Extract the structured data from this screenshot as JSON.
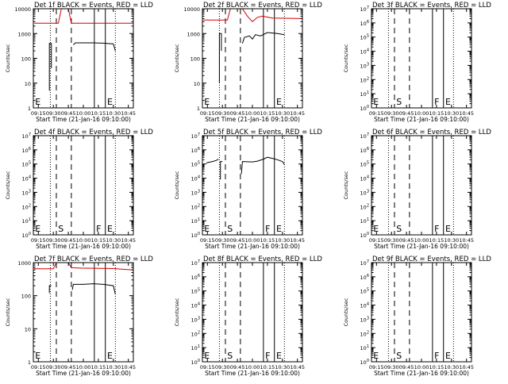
{
  "figure": {
    "xtick_labels": [
      "09:15",
      "09:30",
      "09:45",
      "10:00",
      "10:15",
      "10:30",
      "10:45"
    ],
    "xtick_values": [
      555,
      570,
      585,
      600,
      615,
      630,
      645
    ],
    "colors": {
      "events": "#000000",
      "lld": "#d40000",
      "background": "#ffffff"
    },
    "line_styles": {
      "dotted": "dotted",
      "dashed": "dashed",
      "solid": "solid"
    }
  },
  "chart_data": [
    {
      "type": "line",
      "id": 1,
      "title": "Det 1f BLACK = Events, RED = LLD",
      "xlabel": "Start Time (21-Jan-16 09:10:00)",
      "ylabel": "Counts/sec",
      "xlim": [
        550,
        650
      ],
      "yscale": "log",
      "ylim": [
        1,
        10000
      ],
      "ytick_values": [
        1,
        10,
        100,
        1000,
        10000
      ],
      "ytick_labels": [
        "1",
        "10",
        "100",
        "1000",
        "10000"
      ],
      "vlines": [
        {
          "x": 567,
          "style": "dotted"
        },
        {
          "x": 573,
          "style": "dashed"
        },
        {
          "x": 588,
          "style": "dashed"
        },
        {
          "x": 611,
          "style": "solid"
        },
        {
          "x": 622,
          "style": "solid"
        },
        {
          "x": 632,
          "style": "dotted"
        }
      ],
      "markers": [
        {
          "label": "E",
          "x": 551
        },
        {
          "label": "E",
          "x": 623
        }
      ],
      "series": [
        {
          "color": "black",
          "segments": [
            [
              [
                566,
                5
              ],
              [
                566,
                400
              ],
              [
                568,
                400
              ],
              [
                568,
                40
              ]
            ],
            [
              [
                590,
                350
              ],
              [
                592,
                420
              ],
              [
                600,
                420
              ],
              [
                610,
                420
              ],
              [
                620,
                410
              ],
              [
                630,
                380
              ],
              [
                632,
                200
              ]
            ]
          ]
        },
        {
          "color": "red",
          "segments": [
            [
              [
                551,
                2600
              ],
              [
                575,
                2600
              ],
              [
                578,
                10000
              ],
              [
                585,
                10000
              ],
              [
                588,
                2600
              ],
              [
                650,
                2600
              ]
            ]
          ]
        }
      ]
    },
    {
      "type": "line",
      "id": 2,
      "title": "Det 2f BLACK = Events, RED = LLD",
      "xlabel": "Start Time (21-Jan-16 09:10:00)",
      "ylabel": "Counts/sec",
      "xlim": [
        550,
        650
      ],
      "yscale": "log",
      "ylim": [
        1,
        10000
      ],
      "ytick_values": [
        1,
        10,
        100,
        1000,
        10000
      ],
      "ytick_labels": [
        "1",
        "10",
        "100",
        "1000",
        "10000"
      ],
      "vlines": [
        {
          "x": 567,
          "style": "dotted"
        },
        {
          "x": 573,
          "style": "dashed"
        },
        {
          "x": 588,
          "style": "dashed"
        },
        {
          "x": 611,
          "style": "solid"
        },
        {
          "x": 622,
          "style": "solid"
        },
        {
          "x": 632,
          "style": "dotted"
        }
      ],
      "markers": [
        {
          "label": "E",
          "x": 551
        },
        {
          "label": "E",
          "x": 623
        }
      ],
      "series": [
        {
          "color": "black",
          "segments": [
            [
              [
                567,
                10
              ],
              [
                567,
                1000
              ],
              [
                569,
                1000
              ],
              [
                569,
                200
              ]
            ],
            [
              [
                590,
                400
              ],
              [
                592,
                700
              ],
              [
                597,
                800
              ],
              [
                600,
                600
              ],
              [
                603,
                900
              ],
              [
                608,
                800
              ],
              [
                615,
                1100
              ],
              [
                625,
                1000
              ],
              [
                632,
                900
              ]
            ]
          ]
        },
        {
          "color": "red",
          "segments": [
            [
              [
                551,
                3500
              ],
              [
                575,
                3500
              ],
              [
                578,
                10000
              ],
              [
                590,
                10000
              ],
              [
                595,
                5000
              ],
              [
                600,
                3000
              ],
              [
                605,
                4500
              ],
              [
                610,
                5000
              ],
              [
                620,
                4200
              ],
              [
                650,
                4000
              ]
            ]
          ]
        }
      ]
    },
    {
      "type": "line",
      "id": 3,
      "title": "Det 3f BLACK = Events, RED = LLD",
      "xlabel": "Start Time (21-Jan-16 09:10:00)",
      "ylabel": "Counts/sec",
      "xlim": [
        550,
        650
      ],
      "yscale": "log",
      "ylim": [
        1,
        10000000
      ],
      "ytick_values": [
        1,
        10,
        100,
        1000,
        10000,
        100000,
        1000000,
        10000000
      ],
      "ytick_labels": [
        "10^0",
        "10^1",
        "10^2",
        "10^3",
        "10^4",
        "10^5",
        "10^6",
        "10^7"
      ],
      "vlines": [
        {
          "x": 567,
          "style": "dotted"
        },
        {
          "x": 573,
          "style": "dashed"
        },
        {
          "x": 588,
          "style": "dashed"
        },
        {
          "x": 611,
          "style": "solid"
        },
        {
          "x": 622,
          "style": "solid"
        },
        {
          "x": 632,
          "style": "dotted"
        }
      ],
      "markers": [
        {
          "label": "E",
          "x": 551
        },
        {
          "label": "S",
          "x": 574
        },
        {
          "label": "F",
          "x": 612
        },
        {
          "label": "E",
          "x": 623
        }
      ],
      "series": []
    },
    {
      "type": "line",
      "id": 4,
      "title": "Det 4f BLACK = Events, RED = LLD",
      "xlabel": "Start Time (21-Jan-16 09:10:00)",
      "ylabel": "Counts/sec",
      "xlim": [
        550,
        650
      ],
      "yscale": "log",
      "ylim": [
        1,
        10000000
      ],
      "ytick_values": [
        1,
        10,
        100,
        1000,
        10000,
        100000,
        1000000,
        10000000
      ],
      "ytick_labels": [
        "10^0",
        "10^1",
        "10^2",
        "10^3",
        "10^4",
        "10^5",
        "10^6",
        "10^7"
      ],
      "vlines": [
        {
          "x": 567,
          "style": "dotted"
        },
        {
          "x": 573,
          "style": "dashed"
        },
        {
          "x": 588,
          "style": "dashed"
        },
        {
          "x": 611,
          "style": "solid"
        },
        {
          "x": 622,
          "style": "solid"
        },
        {
          "x": 632,
          "style": "dotted"
        }
      ],
      "markers": [
        {
          "label": "E",
          "x": 551
        },
        {
          "label": "S",
          "x": 574
        },
        {
          "label": "F",
          "x": 612
        },
        {
          "label": "E",
          "x": 623
        }
      ],
      "series": []
    },
    {
      "type": "line",
      "id": 5,
      "title": "Det 5f BLACK = Events, RED = LLD",
      "xlabel": "Start Time (21-Jan-16 09:10:00)",
      "ylabel": "Counts/sec",
      "xlim": [
        550,
        650
      ],
      "yscale": "log",
      "ylim": [
        1,
        10000000
      ],
      "ytick_values": [
        1,
        10,
        100,
        1000,
        10000,
        100000,
        1000000,
        10000000
      ],
      "ytick_labels": [
        "10^0",
        "10^1",
        "10^2",
        "10^3",
        "10^4",
        "10^5",
        "10^6",
        "10^7"
      ],
      "vlines": [
        {
          "x": 567,
          "style": "dotted"
        },
        {
          "x": 573,
          "style": "dashed"
        },
        {
          "x": 588,
          "style": "dashed"
        },
        {
          "x": 611,
          "style": "solid"
        },
        {
          "x": 622,
          "style": "solid"
        },
        {
          "x": 632,
          "style": "dotted"
        }
      ],
      "markers": [
        {
          "label": "E",
          "x": 551
        },
        {
          "label": "S",
          "x": 574
        },
        {
          "label": "F",
          "x": 612
        },
        {
          "label": "E",
          "x": 623
        }
      ],
      "series": [
        {
          "color": "black",
          "segments": [
            [
              [
                554,
                120000
              ],
              [
                560,
                150000
              ],
              [
                564,
                180000
              ],
              [
                566,
                220000
              ]
            ],
            [
              [
                568,
                8000
              ],
              [
                568,
                150000
              ],
              [
                570,
                150000
              ]
            ],
            [
              [
                589,
                20000
              ],
              [
                590,
                150000
              ],
              [
                600,
                140000
              ],
              [
                605,
                160000
              ],
              [
                611,
                220000
              ],
              [
                615,
                300000
              ],
              [
                620,
                250000
              ],
              [
                625,
                200000
              ],
              [
                630,
                150000
              ],
              [
                632,
                90000
              ]
            ]
          ]
        }
      ]
    },
    {
      "type": "line",
      "id": 6,
      "title": "Det 6f BLACK = Events, RED = LLD",
      "xlabel": "Start Time (21-Jan-16 09:10:00)",
      "ylabel": "Counts/sec",
      "xlim": [
        550,
        650
      ],
      "yscale": "log",
      "ylim": [
        1,
        10000000
      ],
      "ytick_values": [
        1,
        10,
        100,
        1000,
        10000,
        100000,
        1000000,
        10000000
      ],
      "ytick_labels": [
        "10^0",
        "10^1",
        "10^2",
        "10^3",
        "10^4",
        "10^5",
        "10^6",
        "10^7"
      ],
      "vlines": [
        {
          "x": 567,
          "style": "dotted"
        },
        {
          "x": 573,
          "style": "dashed"
        },
        {
          "x": 588,
          "style": "dashed"
        },
        {
          "x": 611,
          "style": "solid"
        },
        {
          "x": 622,
          "style": "solid"
        },
        {
          "x": 632,
          "style": "dotted"
        }
      ],
      "markers": [
        {
          "label": "E",
          "x": 551
        },
        {
          "label": "S",
          "x": 574
        },
        {
          "label": "F",
          "x": 612
        },
        {
          "label": "E",
          "x": 623
        }
      ],
      "series": []
    },
    {
      "type": "line",
      "id": 7,
      "title": "Det 7f BLACK = Events, RED = LLD",
      "xlabel": "Start Time (21-Jan-16 09:10:00)",
      "ylabel": "Counts/sec",
      "xlim": [
        550,
        650
      ],
      "yscale": "log",
      "ylim": [
        1,
        1000
      ],
      "ytick_values": [
        1,
        10,
        100,
        1000
      ],
      "ytick_labels": [
        "1",
        "10",
        "100",
        "1000"
      ],
      "vlines": [
        {
          "x": 567,
          "style": "dotted"
        },
        {
          "x": 573,
          "style": "dashed"
        },
        {
          "x": 588,
          "style": "dashed"
        },
        {
          "x": 611,
          "style": "solid"
        },
        {
          "x": 622,
          "style": "solid"
        },
        {
          "x": 632,
          "style": "dotted"
        }
      ],
      "markers": [
        {
          "label": "E",
          "x": 551
        },
        {
          "label": "E",
          "x": 623
        }
      ],
      "series": [
        {
          "color": "black",
          "segments": [
            [
              [
                566,
                120
              ],
              [
                566,
                200
              ],
              [
                568,
                200
              ]
            ],
            [
              [
                589,
                150
              ],
              [
                590,
                220
              ],
              [
                600,
                220
              ],
              [
                610,
                230
              ],
              [
                620,
                220
              ],
              [
                630,
                200
              ],
              [
                632,
                110
              ]
            ]
          ]
        },
        {
          "color": "red",
          "segments": [
            [
              [
                551,
                650
              ],
              [
                570,
                650
              ],
              [
                573,
                1000
              ],
              [
                585,
                1000
              ],
              [
                588,
                700
              ],
              [
                600,
                680
              ],
              [
                630,
                660
              ],
              [
                650,
                600
              ]
            ]
          ]
        }
      ]
    },
    {
      "type": "line",
      "id": 8,
      "title": "Det 8f BLACK = Events, RED = LLD",
      "xlabel": "Start Time (21-Jan-16 09:10:00)",
      "ylabel": "Counts/sec",
      "xlim": [
        550,
        650
      ],
      "yscale": "log",
      "ylim": [
        1,
        10000000
      ],
      "ytick_values": [
        1,
        10,
        100,
        1000,
        10000,
        100000,
        1000000,
        10000000
      ],
      "ytick_labels": [
        "10^0",
        "10^1",
        "10^2",
        "10^3",
        "10^4",
        "10^5",
        "10^6",
        "10^7"
      ],
      "vlines": [
        {
          "x": 567,
          "style": "dotted"
        },
        {
          "x": 573,
          "style": "dashed"
        },
        {
          "x": 588,
          "style": "dashed"
        },
        {
          "x": 611,
          "style": "solid"
        },
        {
          "x": 622,
          "style": "solid"
        },
        {
          "x": 632,
          "style": "dotted"
        }
      ],
      "markers": [
        {
          "label": "E",
          "x": 551
        },
        {
          "label": "S",
          "x": 574
        },
        {
          "label": "F",
          "x": 612
        },
        {
          "label": "E",
          "x": 623
        }
      ],
      "series": []
    },
    {
      "type": "line",
      "id": 9,
      "title": "Det 9f BLACK = Events, RED = LLD",
      "xlabel": "Start Time (21-Jan-16 09:10:00)",
      "ylabel": "Counts/sec",
      "xlim": [
        550,
        650
      ],
      "yscale": "log",
      "ylim": [
        1,
        10000000
      ],
      "ytick_values": [
        1,
        10,
        100,
        1000,
        10000,
        100000,
        1000000,
        10000000
      ],
      "ytick_labels": [
        "10^0",
        "10^1",
        "10^2",
        "10^3",
        "10^4",
        "10^5",
        "10^6",
        "10^7"
      ],
      "vlines": [
        {
          "x": 567,
          "style": "dotted"
        },
        {
          "x": 573,
          "style": "dashed"
        },
        {
          "x": 588,
          "style": "dashed"
        },
        {
          "x": 611,
          "style": "solid"
        },
        {
          "x": 622,
          "style": "solid"
        },
        {
          "x": 632,
          "style": "dotted"
        }
      ],
      "markers": [
        {
          "label": "E",
          "x": 551
        },
        {
          "label": "S",
          "x": 574
        },
        {
          "label": "F",
          "x": 612
        },
        {
          "label": "E",
          "x": 623
        }
      ],
      "series": []
    }
  ]
}
